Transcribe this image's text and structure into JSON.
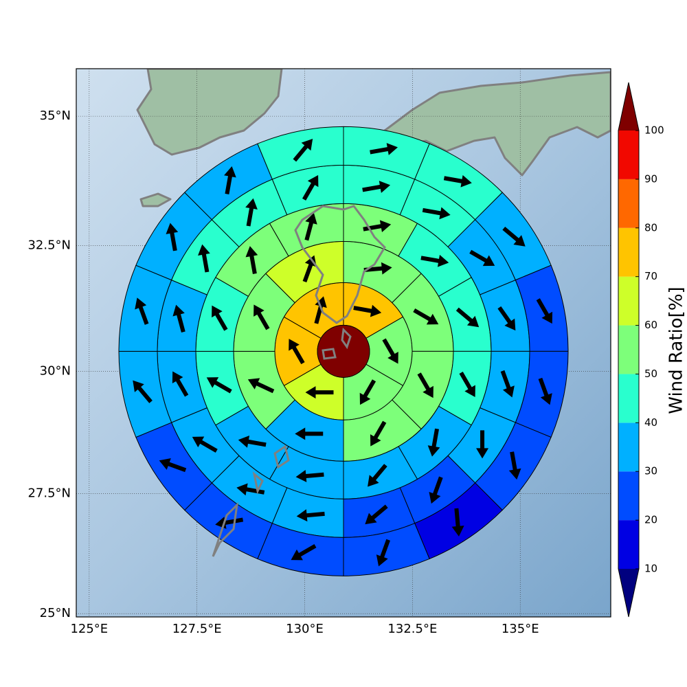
{
  "chart_data": {
    "type": "polar-sector-map",
    "projection": "mercator",
    "xlim": [
      124.7,
      137.1
    ],
    "ylim": [
      24.93,
      35.9
    ],
    "xticks": [
      {
        "value": 125,
        "label": "125°E"
      },
      {
        "value": 127.5,
        "label": "127.5°E"
      },
      {
        "value": 130,
        "label": "130°E"
      },
      {
        "value": 132.5,
        "label": "132.5°E"
      },
      {
        "value": 135,
        "label": "135°E"
      }
    ],
    "yticks": [
      {
        "value": 25,
        "label": "25°N"
      },
      {
        "value": 27.5,
        "label": "27.5°N"
      },
      {
        "value": 30,
        "label": "30°N"
      },
      {
        "value": 32.5,
        "label": "32.5°N"
      },
      {
        "value": 35,
        "label": "35°N"
      }
    ],
    "grid": true,
    "center": {
      "lon": 130.9,
      "lat": 30.4,
      "value": 105
    },
    "rings": [
      {
        "values": [
          75,
          55,
          55,
          65,
          75,
          75
        ],
        "directions": [
          100,
          150,
          210,
          270,
          330,
          15
        ]
      },
      {
        "values": [
          55,
          55,
          55,
          55,
          35,
          55,
          55,
          65
        ],
        "directions": [
          85,
          120,
          150,
          210,
          270,
          295,
          330,
          20
        ]
      },
      {
        "values": [
          55,
          45,
          45,
          45,
          35,
          35,
          35,
          35,
          45,
          45,
          55,
          55
        ],
        "directions": [
          80,
          100,
          130,
          150,
          190,
          220,
          265,
          280,
          300,
          330,
          350,
          15
        ]
      },
      {
        "values": [
          45,
          45,
          35,
          35,
          35,
          35,
          25,
          25,
          35,
          35,
          35,
          35,
          35,
          45,
          45,
          45
        ],
        "directions": [
          80,
          100,
          120,
          145,
          160,
          180,
          200,
          230,
          265,
          280,
          300,
          330,
          345,
          350,
          10,
          30
        ]
      },
      {
        "values": [
          45,
          45,
          35,
          25,
          25,
          25,
          15,
          25,
          25,
          25,
          25,
          35,
          35,
          35,
          35,
          45
        ],
        "directions": [
          80,
          100,
          130,
          150,
          160,
          170,
          175,
          200,
          240,
          260,
          290,
          320,
          340,
          350,
          10,
          40
        ]
      }
    ],
    "colorbar": {
      "label": "Wind Ratio[%]",
      "ticks": [
        10,
        20,
        30,
        40,
        50,
        60,
        70,
        80,
        90,
        100
      ],
      "colors": [
        "#00007f",
        "#0000e3",
        "#004cff",
        "#00b0ff",
        "#29ffce",
        "#7dff7a",
        "#ceff29",
        "#ffc400",
        "#ff6800",
        "#f10800",
        "#7f0000"
      ],
      "extend": "both"
    }
  }
}
